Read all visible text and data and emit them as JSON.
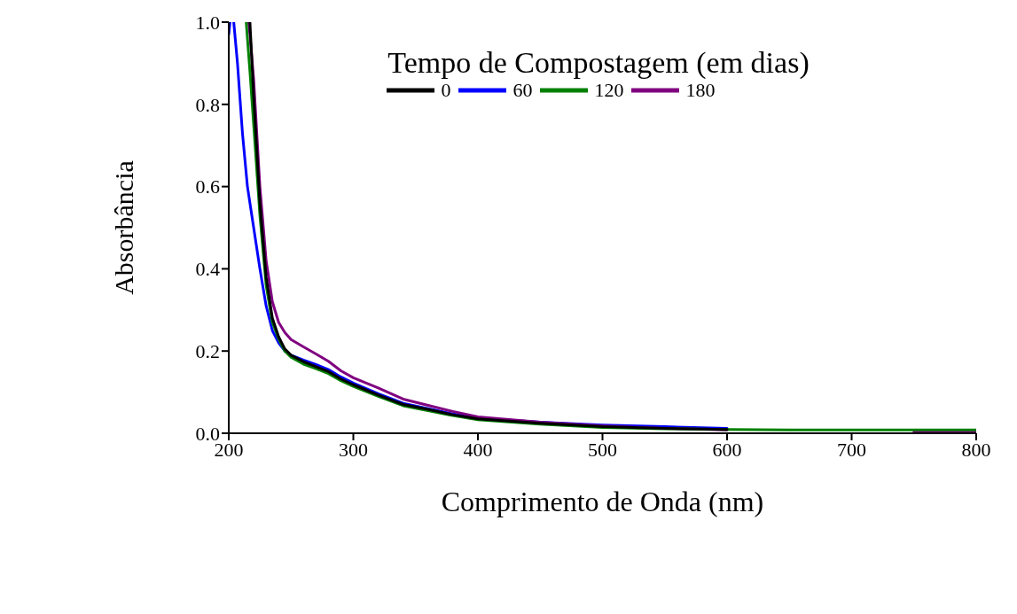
{
  "chart_data": {
    "type": "line",
    "xlabel": "Comprimento de Onda (nm)",
    "ylabel": "Absorbância",
    "legend_title": "Tempo de Compostagem (em dias)",
    "legend": "top",
    "grid": false,
    "marker": "none",
    "line_style": "solid",
    "xlim": [
      200,
      800
    ],
    "xticks": [
      200,
      300,
      400,
      500,
      600,
      700,
      800
    ],
    "ylim": [
      0,
      1
    ],
    "yticks": [
      {
        "value": 0,
        "label": "0.0"
      },
      {
        "value": 0.2,
        "label": "0.2"
      },
      {
        "value": 0.4,
        "label": "0.4"
      },
      {
        "value": 0.6,
        "label": "0.6"
      },
      {
        "value": 0.8,
        "label": "0.8"
      },
      {
        "value": 1,
        "label": "1.0"
      }
    ],
    "series": [
      {
        "name": "0",
        "color": "#000000",
        "x": [
          217,
          220,
          225,
          230,
          235,
          240,
          245,
          250,
          260,
          270,
          280,
          290,
          300,
          320,
          340,
          360,
          380,
          400,
          450,
          500,
          550,
          600
        ],
        "values": [
          1.0,
          0.82,
          0.56,
          0.38,
          0.28,
          0.235,
          0.205,
          0.19,
          0.174,
          0.162,
          0.15,
          0.132,
          0.118,
          0.093,
          0.07,
          0.058,
          0.045,
          0.035,
          0.024,
          0.016,
          0.012,
          0.009
        ]
      },
      {
        "name": "60",
        "color": "#0000ff",
        "x": [
          200,
          201,
          202,
          204,
          207,
          211,
          215,
          220,
          225,
          230,
          235,
          240,
          245,
          250,
          260,
          270,
          280,
          290,
          300,
          320,
          340,
          360,
          380,
          400,
          450,
          500,
          550,
          600
        ],
        "values": [
          0.97,
          1.0,
          null,
          1.0,
          0.9,
          0.73,
          0.6,
          0.5,
          0.4,
          0.31,
          0.25,
          0.22,
          0.2,
          0.19,
          0.178,
          0.167,
          0.155,
          0.137,
          0.122,
          0.096,
          0.073,
          0.06,
          0.047,
          0.037,
          0.027,
          0.02,
          0.016,
          0.012
        ]
      },
      {
        "name": "120",
        "color": "#008000",
        "x": [
          214,
          217,
          220,
          225,
          230,
          235,
          240,
          245,
          250,
          260,
          270,
          280,
          290,
          300,
          320,
          340,
          360,
          380,
          400,
          450,
          500,
          550,
          600,
          650,
          700,
          750,
          800
        ],
        "values": [
          1.0,
          0.88,
          0.75,
          0.53,
          0.36,
          0.27,
          0.23,
          0.2,
          0.185,
          0.168,
          0.157,
          0.145,
          0.128,
          0.114,
          0.09,
          0.067,
          0.055,
          0.043,
          0.033,
          0.022,
          0.014,
          0.011,
          0.009,
          0.008,
          0.008,
          0.008,
          0.008
        ]
      },
      {
        "name": "180",
        "color": "#800080",
        "x": [
          216,
          217,
          220,
          225,
          230,
          235,
          240,
          245,
          250,
          260,
          270,
          280,
          290,
          300,
          320,
          340,
          360,
          380,
          400,
          450,
          500,
          550,
          600,
          650,
          700,
          750,
          800
        ],
        "values": [
          1.0,
          0.97,
          0.86,
          0.6,
          0.42,
          0.32,
          0.27,
          0.245,
          0.228,
          0.21,
          0.193,
          0.175,
          0.152,
          0.135,
          0.11,
          0.083,
          0.068,
          0.053,
          0.04,
          0.027,
          0.018,
          0.012,
          0.008,
          null,
          null,
          0.004,
          0.003
        ]
      }
    ]
  }
}
